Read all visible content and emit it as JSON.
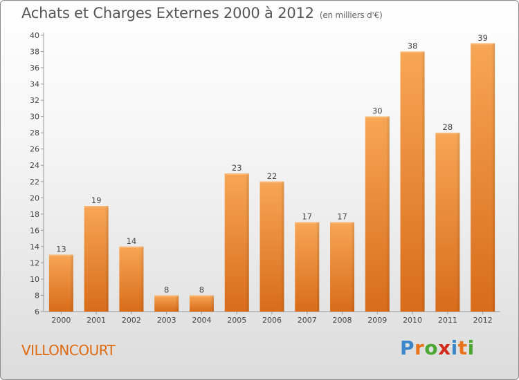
{
  "title": "Achats et Charges Externes 2000 à 2012",
  "subtitle": "(en milliers d'€)",
  "commune": "VILLONCOURT",
  "logo": {
    "letters": [
      "P",
      "r",
      "o",
      "x",
      "i",
      "t",
      "i"
    ],
    "colors": [
      "#3a86c8",
      "#e8731a",
      "#4aa832",
      "#d42a1c",
      "#3a86c8",
      "#e8731a",
      "#4aa832"
    ]
  },
  "chart_data": {
    "type": "bar",
    "categories": [
      "2000",
      "2001",
      "2002",
      "2003",
      "2004",
      "2005",
      "2006",
      "2007",
      "2008",
      "2009",
      "2010",
      "2011",
      "2012"
    ],
    "values": [
      13,
      19,
      14,
      8,
      8,
      23,
      22,
      17,
      17,
      30,
      38,
      28,
      39
    ],
    "title": "Achats et Charges Externes 2000 à 2012",
    "subtitle": "(en milliers d'€)",
    "ylim": [
      6,
      40
    ],
    "yticks": [
      6,
      8,
      10,
      12,
      14,
      16,
      18,
      20,
      22,
      24,
      26,
      28,
      30,
      32,
      34,
      36,
      38,
      40
    ],
    "grid": false,
    "bar_color": "#f0902e"
  }
}
